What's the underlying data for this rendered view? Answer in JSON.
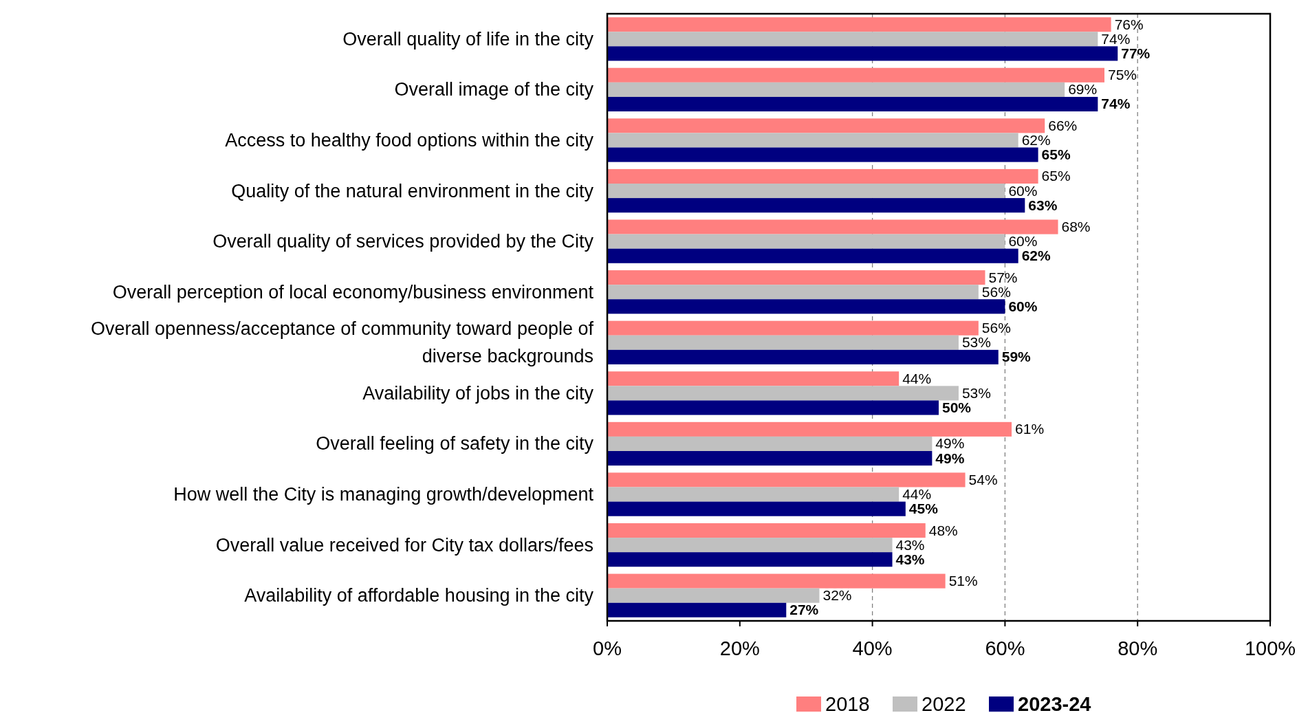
{
  "chart_data": {
    "type": "bar",
    "orientation": "horizontal",
    "categories": [
      "Overall quality of life in the city",
      "Overall image of the city",
      "Access to healthy food options within the city",
      "Quality of the natural environment in the city",
      "Overall quality of services provided by the City",
      "Overall perception of local economy/business environment",
      "Overall openness/acceptance of community toward people of diverse backgrounds",
      "Availability of jobs in the city",
      "Overall feeling of safety in the city",
      "How well the City is managing growth/development",
      "Overall value received for City tax dollars/fees",
      "Availability of affordable housing in the city"
    ],
    "series": [
      {
        "name": "2018",
        "color": "#ff7f7f",
        "values": [
          76,
          75,
          66,
          65,
          68,
          57,
          56,
          44,
          61,
          54,
          48,
          51
        ],
        "value_labels": [
          "76%",
          "75%",
          "66%",
          "65%",
          "68%",
          "57%",
          "56%",
          "44%",
          "61%",
          "54%",
          "48%",
          "51%"
        ]
      },
      {
        "name": "2022",
        "color": "#c0c0c0",
        "values": [
          74,
          69,
          62,
          60,
          60,
          56,
          53,
          53,
          49,
          44,
          43,
          32
        ],
        "value_labels": [
          "74%",
          "69%",
          "62%",
          "60%",
          "60%",
          "56%",
          "53%",
          "53%",
          "49%",
          "44%",
          "43%",
          "32%"
        ]
      },
      {
        "name": "2023-24",
        "color": "#000080",
        "values": [
          77,
          74,
          65,
          63,
          62,
          60,
          59,
          50,
          49,
          45,
          43,
          27
        ],
        "value_labels": [
          "77%",
          "74%",
          "65%",
          "63%",
          "62%",
          "60%",
          "59%",
          "50%",
          "49%",
          "45%",
          "43%",
          "27%"
        ]
      }
    ],
    "xlim": [
      0,
      100
    ],
    "xticks": [
      {
        "value": 0,
        "label": "0%"
      },
      {
        "value": 20,
        "label": "20%"
      },
      {
        "value": 40,
        "label": "40%"
      },
      {
        "value": 60,
        "label": "60%"
      },
      {
        "value": 80,
        "label": "80%"
      },
      {
        "value": 100,
        "label": "100%"
      }
    ],
    "ref_lines": [
      {
        "axis": "x",
        "value": 40,
        "color": "#808080",
        "line_style": "dashed"
      },
      {
        "axis": "x",
        "value": 60,
        "color": "#808080",
        "line_style": "dashed"
      },
      {
        "axis": "x",
        "value": 80,
        "color": "#808080",
        "line_style": "dashed"
      }
    ],
    "legend": "bottom"
  }
}
